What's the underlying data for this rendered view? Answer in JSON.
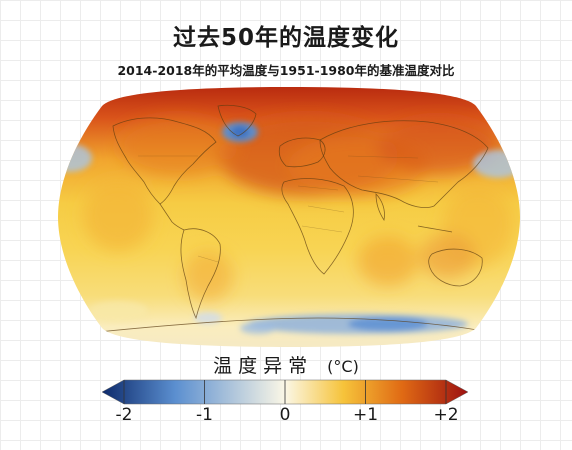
{
  "header": {
    "title": "过去50年的温度变化",
    "subtitle": "2014-2018年的平均温度与1951-1980年的基准温度对比"
  },
  "legend": {
    "title": "温度异常",
    "unit": "(°C)",
    "range": [
      -2,
      2
    ],
    "ticks": [
      {
        "value": -2,
        "label": "-2"
      },
      {
        "value": -1,
        "label": "-1"
      },
      {
        "value": 0,
        "label": "0"
      },
      {
        "value": 1,
        "label": "+1"
      },
      {
        "value": 2,
        "label": "+2"
      }
    ],
    "colors": {
      "strong_cold": "#0d2a6b",
      "cold": "#5b8fd0",
      "neutral": "#fbf7e6",
      "warm": "#f6c33a",
      "hot": "#e06a14",
      "strong_hot": "#9c1111"
    }
  },
  "map": {
    "projection": "robinson",
    "ocean_base_color": "#f4cf3b",
    "arctic_color": "#c8320f",
    "outline_color": "#5a3a10"
  }
}
